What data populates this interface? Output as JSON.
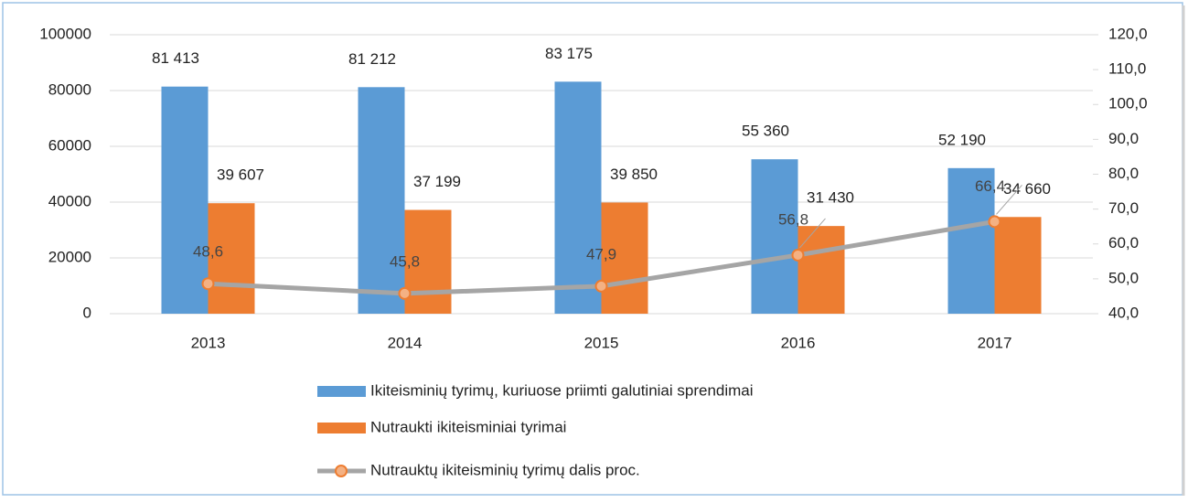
{
  "chart_data": {
    "type": "bar",
    "categories": [
      "2013",
      "2014",
      "2015",
      "2016",
      "2017"
    ],
    "series": [
      {
        "name": "Ikiteisminių tyrimų, kuriuose priimti galutiniai sprendimai",
        "color": "#5b9bd5",
        "values": [
          81413,
          81212,
          83175,
          55360,
          52190
        ],
        "value_labels": [
          "81 413",
          "81 212",
          "83 175",
          "55 360",
          "52 190"
        ]
      },
      {
        "name": "Nutraukti ikiteisminiai tyrimai",
        "color": "#ed7d31",
        "values": [
          39607,
          37199,
          39850,
          31430,
          34660
        ],
        "value_labels": [
          "39 607",
          "37 199",
          "39 850",
          "31 430",
          "34 660"
        ]
      },
      {
        "name": "Nutrauktų ikiteisminių tyrimų dalis proc.",
        "color": "#a5a5a5",
        "marker_color": "#ed7d31",
        "type": "line",
        "axis": "y2",
        "values": [
          48.6,
          45.8,
          47.9,
          56.8,
          66.4
        ],
        "value_labels": [
          "48,6",
          "45,8",
          "47,9",
          "56,8",
          "66,4"
        ]
      }
    ],
    "ylim": [
      0,
      100000
    ],
    "yticks": [
      0,
      20000,
      40000,
      60000,
      80000,
      100000
    ],
    "y2lim": [
      40,
      120
    ],
    "y2ticks": [
      {
        "value": 40,
        "label": "40,0"
      },
      {
        "value": 50,
        "label": "50,0"
      },
      {
        "value": 60,
        "label": "60,0"
      },
      {
        "value": 70,
        "label": "70,0"
      },
      {
        "value": 80,
        "label": "80,0"
      },
      {
        "value": 90,
        "label": "90,0"
      },
      {
        "value": 100,
        "label": "100,0"
      },
      {
        "value": 110,
        "label": "110,0"
      },
      {
        "value": 120,
        "label": "120,0"
      }
    ],
    "grid": true
  }
}
